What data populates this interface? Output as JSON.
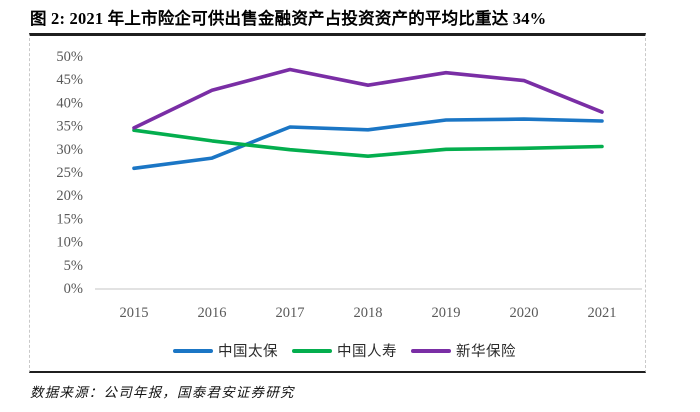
{
  "header": {
    "title": "图 2: 2021 年上市险企可供出售金融资产占投资资产的平均比重达 34%"
  },
  "footer": {
    "source_note": "数据来源：公司年报，国泰君安证券研究"
  },
  "colors": {
    "series_blue": "#1B76C5",
    "series_green": "#04AE4E",
    "series_purple": "#7A2EA5",
    "axis_text": "#595959",
    "axis_line": "#D9D9D9",
    "rule_dark": "#1F1F1F",
    "dashed_border": "#C9C9C9"
  },
  "chart_data": {
    "type": "line",
    "title": "图 2: 2021 年上市险企可供出售金融资产占投资资产的平均比重达 34%",
    "categories": [
      "2015",
      "2016",
      "2017",
      "2018",
      "2019",
      "2020",
      "2021"
    ],
    "series": [
      {
        "name": "中国太保",
        "color": "#1B76C5",
        "values": [
          25.8,
          28.0,
          34.7,
          34.1,
          36.2,
          36.4,
          36.0
        ]
      },
      {
        "name": "中国人寿",
        "color": "#04AE4E",
        "values": [
          34.0,
          31.7,
          29.8,
          28.4,
          29.9,
          30.1,
          30.5
        ]
      },
      {
        "name": "新华保险",
        "color": "#7A2EA5",
        "values": [
          34.5,
          42.6,
          47.1,
          43.7,
          46.4,
          44.7,
          37.9
        ]
      }
    ],
    "xlabel": "",
    "ylabel": "",
    "ylim": [
      0,
      50
    ],
    "ytick_step": 5,
    "ytick_labels": [
      "0%",
      "5%",
      "10%",
      "15%",
      "20%",
      "25%",
      "30%",
      "35%",
      "40%",
      "45%",
      "50%"
    ],
    "grid": false,
    "legend_position": "bottom"
  }
}
